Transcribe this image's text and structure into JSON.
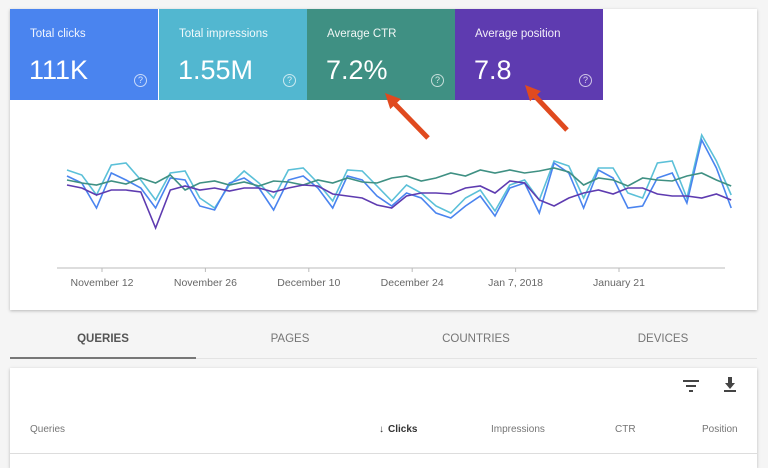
{
  "metrics": [
    {
      "label": "Total clicks",
      "value": "111K",
      "color": "#4a84ef"
    },
    {
      "label": "Total impressions",
      "value": "1.55M",
      "color": "#52b7d0"
    },
    {
      "label": "Average CTR",
      "value": "7.2%",
      "color": "#3f9083"
    },
    {
      "label": "Average position",
      "value": "7.8",
      "color": "#5e3bb0"
    }
  ],
  "help_icon": "?",
  "annotation_color": "#e04a1f",
  "chart_data": {
    "type": "line",
    "x_start": "November 7",
    "x_end": "February 3",
    "x_step_days": 2,
    "xticks": [
      "November 12",
      "November 26",
      "December 10",
      "December 24",
      "Jan 7, 2018",
      "January 21"
    ],
    "ylim": [
      0,
      150
    ],
    "grid": false,
    "series": [
      {
        "key": "impressions",
        "color": "#5bc0d8",
        "values": [
          98,
          93,
          73,
          103,
          105,
          88,
          68,
          95,
          97,
          70,
          60,
          83,
          97,
          85,
          70,
          98,
          100,
          85,
          67,
          98,
          97,
          82,
          67,
          83,
          75,
          62,
          55,
          70,
          78,
          57,
          83,
          88,
          68,
          107,
          102,
          70,
          100,
          100,
          75,
          70,
          105,
          107,
          70,
          133,
          107,
          73
        ]
      },
      {
        "key": "clicks",
        "color": "#4a84ef",
        "values": [
          92,
          85,
          60,
          95,
          88,
          80,
          60,
          90,
          88,
          62,
          58,
          85,
          90,
          80,
          58,
          88,
          92,
          80,
          60,
          92,
          88,
          72,
          62,
          75,
          70,
          55,
          50,
          62,
          72,
          52,
          80,
          85,
          55,
          105,
          95,
          60,
          98,
          90,
          60,
          62,
          90,
          95,
          65,
          128,
          100,
          60
        ]
      },
      {
        "key": "ctr",
        "color": "#3f9083",
        "values": [
          88,
          85,
          83,
          87,
          84,
          90,
          85,
          93,
          78,
          85,
          87,
          83,
          86,
          82,
          87,
          86,
          83,
          88,
          85,
          90,
          86,
          85,
          90,
          92,
          87,
          90,
          95,
          92,
          98,
          95,
          98,
          95,
          97,
          100,
          96,
          83,
          90,
          88,
          82,
          90,
          88,
          87,
          92,
          95,
          88,
          82
        ]
      },
      {
        "key": "position",
        "color": "#5e3bb0",
        "values": [
          83,
          80,
          73,
          78,
          78,
          76,
          40,
          78,
          82,
          78,
          80,
          77,
          80,
          80,
          76,
          80,
          83,
          82,
          74,
          72,
          70,
          63,
          60,
          72,
          75,
          75,
          74,
          80,
          82,
          75,
          87,
          85,
          68,
          62,
          70,
          75,
          78,
          74,
          80,
          80,
          74,
          72,
          72,
          70,
          74,
          68
        ]
      }
    ]
  },
  "tabs": [
    "QUERIES",
    "PAGES",
    "COUNTRIES",
    "DEVICES"
  ],
  "table": {
    "filter_icon": "filter-icon",
    "download_icon": "download-icon",
    "sort_arrow": "↓",
    "headers": [
      "Queries",
      "Clicks",
      "Impressions",
      "CTR",
      "Position"
    ]
  }
}
